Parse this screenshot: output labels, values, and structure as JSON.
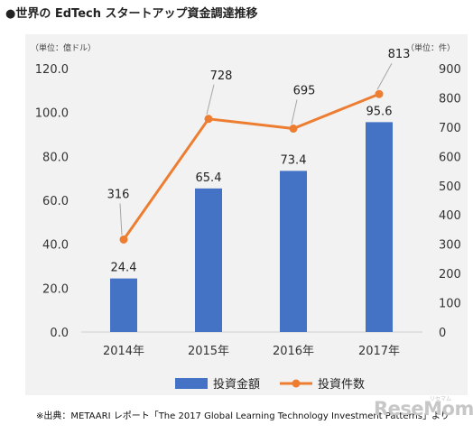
{
  "title": "●世界の EdTech スタートアップ資金調達推移",
  "unit_left": "（単位：億ドル）",
  "unit_right": "（単位：件）",
  "source": "※出典：METAARI レポート「The 2017 Global Learning Technology Investment Patterns」より",
  "watermark": "ReseMom",
  "watermark_sub": "リセマム",
  "colors": {
    "bar": "#4472c4",
    "line": "#ed7d31",
    "background": "#f2f2f2",
    "leader": "#a6a6a6"
  },
  "chart_data": {
    "type": "bar",
    "categories": [
      "2014年",
      "2015年",
      "2016年",
      "2017年"
    ],
    "series": [
      {
        "name": "投資金額",
        "type": "bar",
        "axis": "left",
        "values": [
          24.4,
          65.4,
          73.4,
          95.6
        ]
      },
      {
        "name": "投資件数",
        "type": "line",
        "axis": "right",
        "values": [
          316,
          728,
          695,
          813
        ]
      }
    ],
    "ylim_left": [
      0,
      120
    ],
    "yticks_left": [
      "0.0",
      "20.0",
      "40.0",
      "60.0",
      "80.0",
      "100.0",
      "120.0"
    ],
    "ylim_right": [
      0,
      900
    ],
    "yticks_right": [
      "0",
      "100",
      "200",
      "300",
      "400",
      "500",
      "600",
      "700",
      "800",
      "900"
    ],
    "bar_labels": [
      "24.4",
      "65.4",
      "73.4",
      "95.6"
    ],
    "line_labels": [
      "316",
      "728",
      "695",
      "813"
    ],
    "legend_position": "bottom",
    "grid": false
  }
}
